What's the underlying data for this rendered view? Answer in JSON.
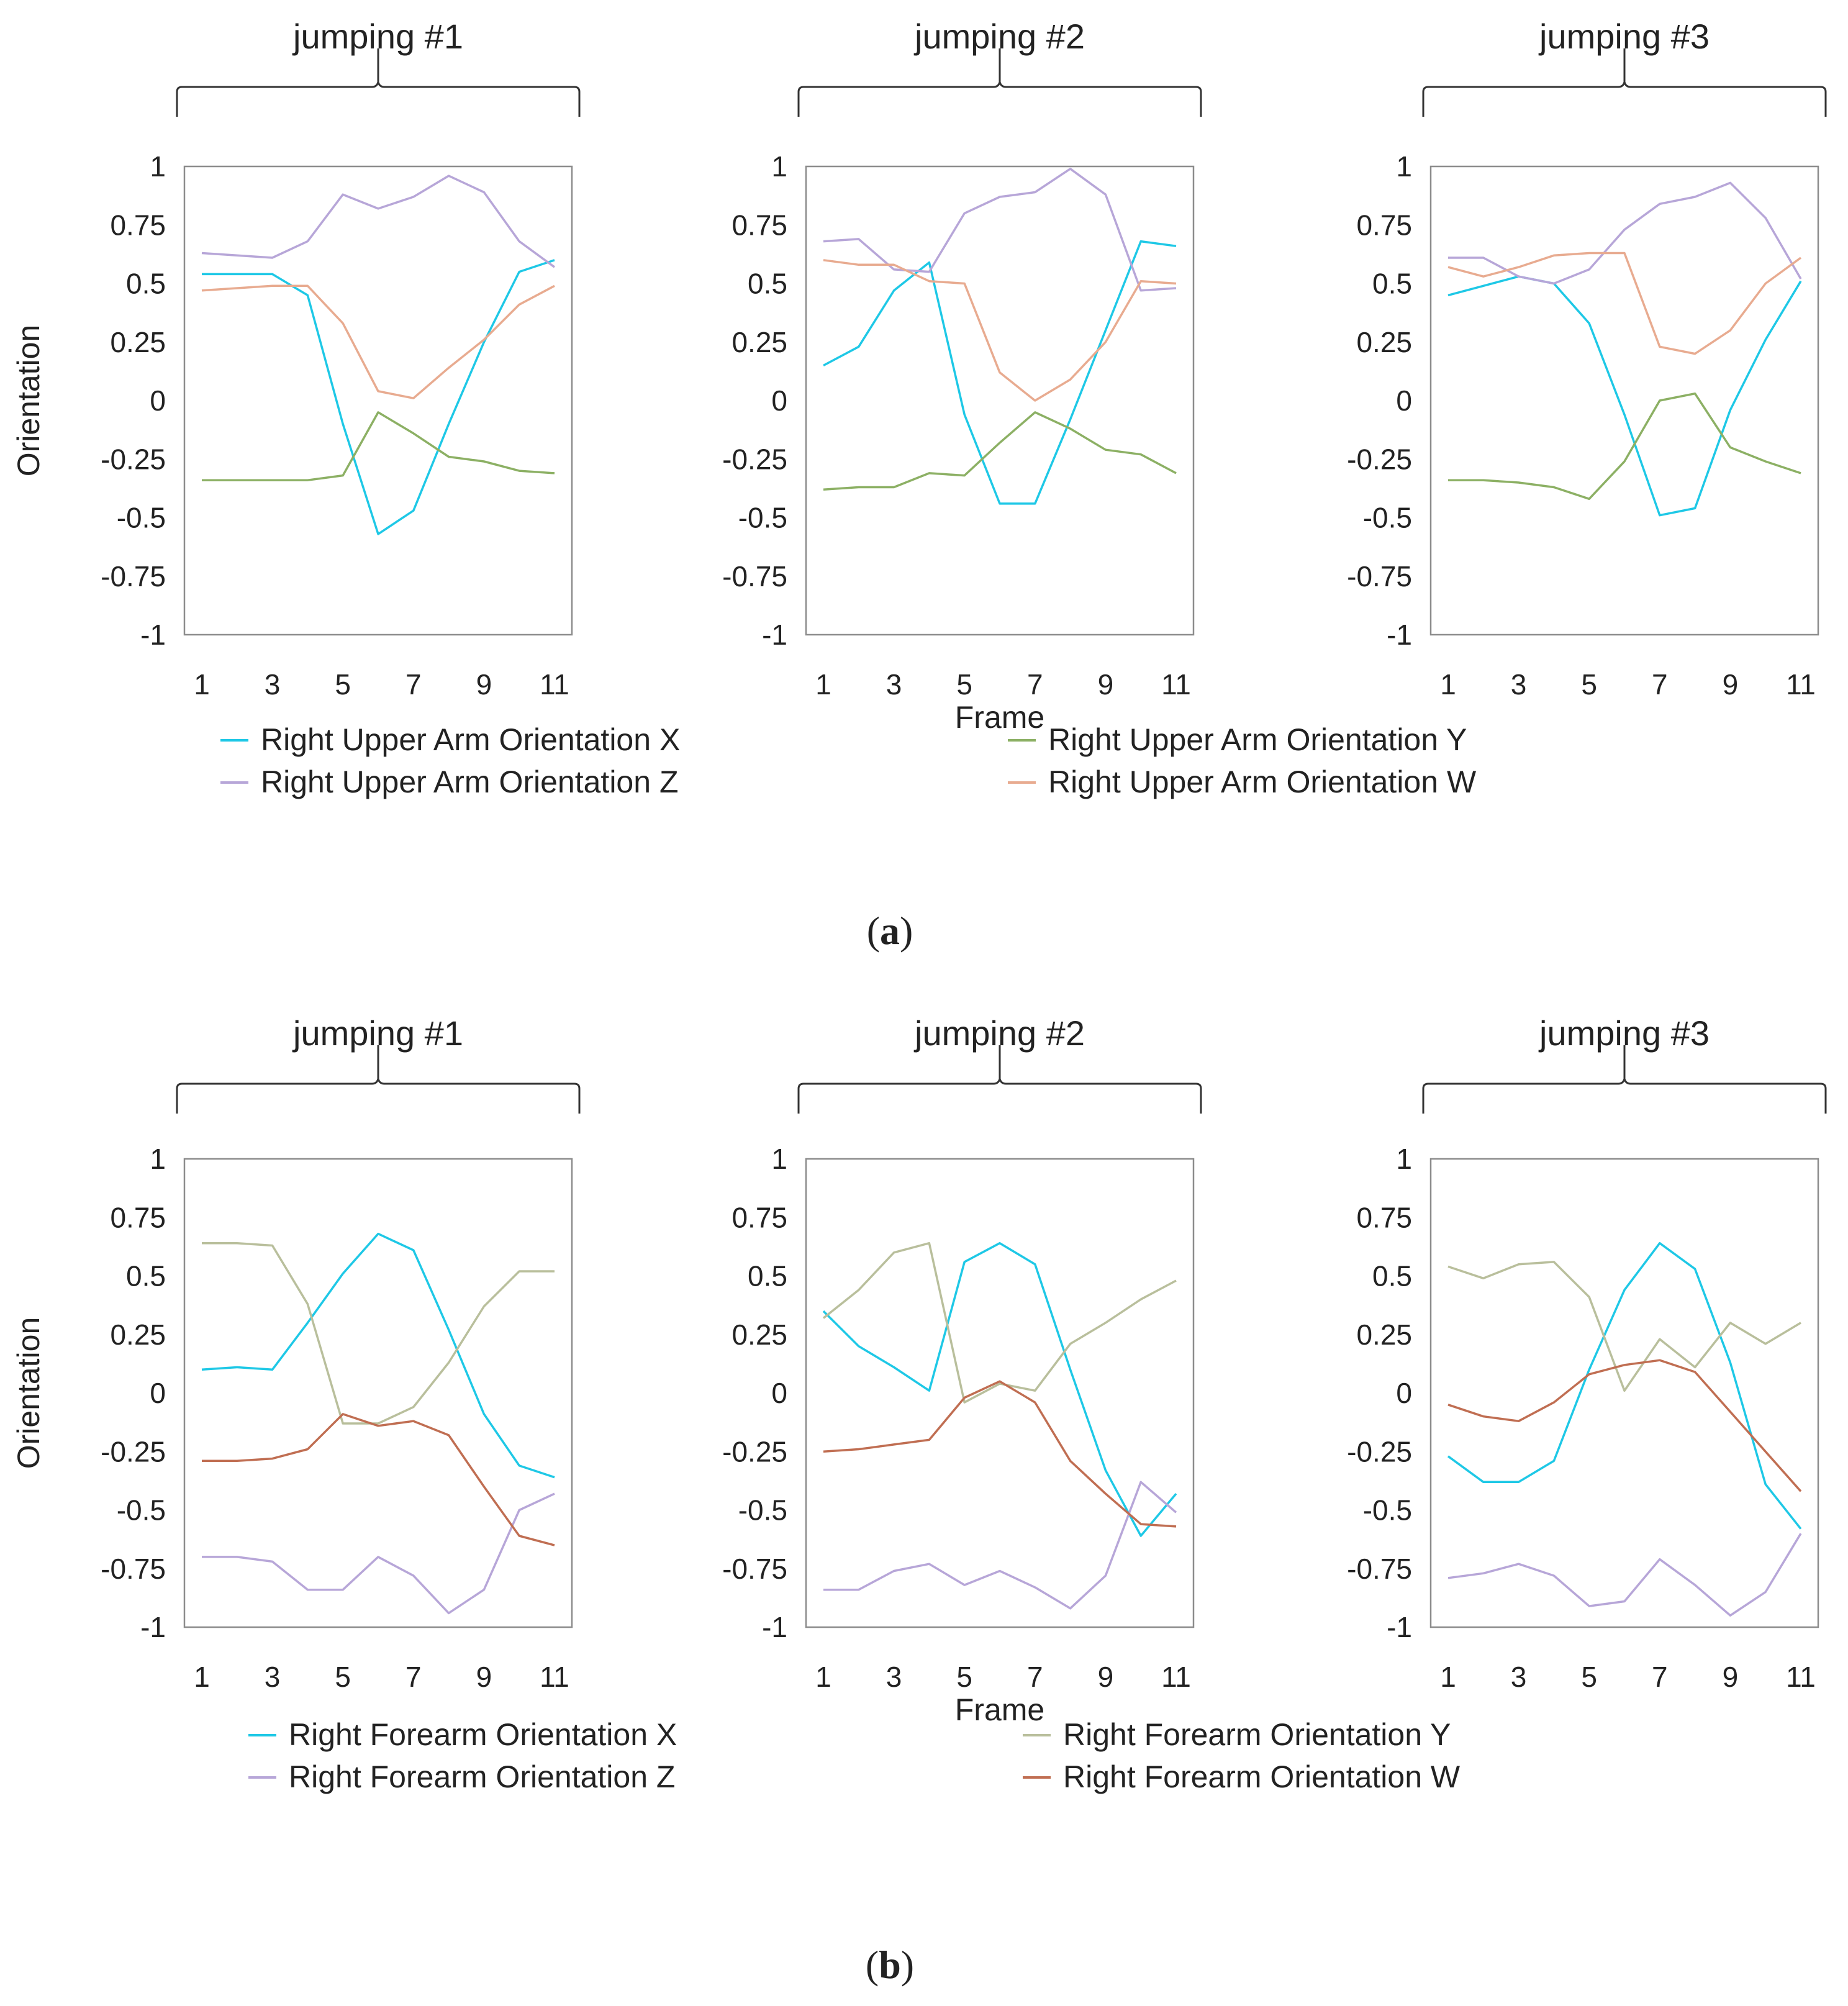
{
  "chart_data": [
    {
      "type": "line",
      "group": "a",
      "title": "jumping #1",
      "ylabel": "Orientation",
      "xlabel": "",
      "xlim": [
        1,
        11
      ],
      "ylim": [
        -1,
        1
      ],
      "x_ticks": [
        "1",
        "3",
        "5",
        "7",
        "9",
        "11"
      ],
      "y_ticks": [
        "1",
        "0.75",
        "0.5",
        "0.25",
        "0",
        "-0.25",
        "-0.5",
        "-0.75",
        "-1"
      ],
      "x": [
        1,
        2,
        3,
        4,
        5,
        6,
        7,
        8,
        9,
        10,
        11
      ],
      "series": [
        {
          "name": "Right Upper Arm Orientation X",
          "color": "#1ec8e6",
          "values": [
            0.54,
            0.54,
            0.54,
            0.45,
            -0.1,
            -0.57,
            -0.47,
            -0.1,
            0.25,
            0.55,
            0.6
          ]
        },
        {
          "name": "Right Upper Arm Orientation Y",
          "color": "#8cb064",
          "values": [
            -0.34,
            -0.34,
            -0.34,
            -0.34,
            -0.32,
            -0.05,
            -0.14,
            -0.24,
            -0.26,
            -0.3,
            -0.31
          ]
        },
        {
          "name": "Right Upper Arm Orientation Z",
          "color": "#b7a6d8",
          "values": [
            0.63,
            0.62,
            0.61,
            0.68,
            0.88,
            0.82,
            0.87,
            0.96,
            0.89,
            0.68,
            0.57
          ]
        },
        {
          "name": "Right Upper Arm Orientation W",
          "color": "#e8ab90",
          "values": [
            0.47,
            0.48,
            0.49,
            0.49,
            0.33,
            0.04,
            0.01,
            0.14,
            0.26,
            0.41,
            0.49
          ]
        }
      ]
    },
    {
      "type": "line",
      "group": "a",
      "title": "jumping #2",
      "ylabel": "",
      "xlabel": "Frame",
      "xlim": [
        1,
        11
      ],
      "ylim": [
        -1,
        1
      ],
      "x_ticks": [
        "1",
        "3",
        "5",
        "7",
        "9",
        "11"
      ],
      "y_ticks": [
        "1",
        "0.75",
        "0.5",
        "0.25",
        "0",
        "-0.25",
        "-0.5",
        "-0.75",
        "-1"
      ],
      "x": [
        1,
        2,
        3,
        4,
        5,
        6,
        7,
        8,
        9,
        10,
        11
      ],
      "series": [
        {
          "name": "Right Upper Arm Orientation X",
          "color": "#1ec8e6",
          "values": [
            0.15,
            0.23,
            0.47,
            0.59,
            -0.06,
            -0.44,
            -0.44,
            -0.08,
            0.3,
            0.68,
            0.66
          ]
        },
        {
          "name": "Right Upper Arm Orientation Y",
          "color": "#8cb064",
          "values": [
            -0.38,
            -0.37,
            -0.37,
            -0.31,
            -0.32,
            -0.18,
            -0.05,
            -0.12,
            -0.21,
            -0.23,
            -0.31
          ]
        },
        {
          "name": "Right Upper Arm Orientation Z",
          "color": "#b7a6d8",
          "values": [
            0.68,
            0.69,
            0.56,
            0.55,
            0.8,
            0.87,
            0.89,
            0.99,
            0.88,
            0.47,
            0.48
          ]
        },
        {
          "name": "Right Upper Arm Orientation W",
          "color": "#e8ab90",
          "values": [
            0.6,
            0.58,
            0.58,
            0.51,
            0.5,
            0.12,
            0.0,
            0.09,
            0.25,
            0.51,
            0.5
          ]
        }
      ]
    },
    {
      "type": "line",
      "group": "a",
      "title": "jumping #3",
      "ylabel": "",
      "xlabel": "",
      "xlim": [
        1,
        11
      ],
      "ylim": [
        -1,
        1
      ],
      "x_ticks": [
        "1",
        "3",
        "5",
        "7",
        "9",
        "11"
      ],
      "y_ticks": [
        "1",
        "0.75",
        "0.5",
        "0.25",
        "0",
        "-0.25",
        "-0.5",
        "-0.75",
        "-1"
      ],
      "x": [
        1,
        2,
        3,
        4,
        5,
        6,
        7,
        8,
        9,
        10,
        11
      ],
      "series": [
        {
          "name": "Right Upper Arm Orientation X",
          "color": "#1ec8e6",
          "values": [
            0.45,
            0.49,
            0.53,
            0.5,
            0.33,
            -0.06,
            -0.49,
            -0.46,
            -0.04,
            0.26,
            0.51
          ]
        },
        {
          "name": "Right Upper Arm Orientation Y",
          "color": "#8cb064",
          "values": [
            -0.34,
            -0.34,
            -0.35,
            -0.37,
            -0.42,
            -0.26,
            0.0,
            0.03,
            -0.2,
            -0.26,
            -0.31
          ]
        },
        {
          "name": "Right Upper Arm Orientation Z",
          "color": "#b7a6d8",
          "values": [
            0.61,
            0.61,
            0.53,
            0.5,
            0.56,
            0.73,
            0.84,
            0.87,
            0.93,
            0.78,
            0.52
          ]
        },
        {
          "name": "Right Upper Arm Orientation W",
          "color": "#e8ab90",
          "values": [
            0.57,
            0.53,
            0.57,
            0.62,
            0.63,
            0.63,
            0.23,
            0.2,
            0.3,
            0.5,
            0.61
          ]
        }
      ]
    },
    {
      "type": "line",
      "group": "b",
      "title": "jumping #1",
      "ylabel": "Orientation",
      "xlabel": "",
      "xlim": [
        1,
        11
      ],
      "ylim": [
        -1,
        1
      ],
      "x_ticks": [
        "1",
        "3",
        "5",
        "7",
        "9",
        "11"
      ],
      "y_ticks": [
        "1",
        "0.75",
        "0.5",
        "0.25",
        "0",
        "-0.25",
        "-0.5",
        "-0.75",
        "-1"
      ],
      "x": [
        1,
        2,
        3,
        4,
        5,
        6,
        7,
        8,
        9,
        10,
        11
      ],
      "series": [
        {
          "name": "Right Forearm Orientation X",
          "color": "#1ec8e6",
          "values": [
            0.1,
            0.11,
            0.1,
            0.3,
            0.51,
            0.68,
            0.61,
            0.27,
            -0.09,
            -0.31,
            -0.36
          ]
        },
        {
          "name": "Right Forearm Orientation Y",
          "color": "#b9bf9c",
          "values": [
            0.64,
            0.64,
            0.63,
            0.38,
            -0.13,
            -0.13,
            -0.06,
            0.13,
            0.37,
            0.52,
            0.52
          ]
        },
        {
          "name": "Right Forearm Orientation Z",
          "color": "#b7a6d8",
          "values": [
            -0.7,
            -0.7,
            -0.72,
            -0.84,
            -0.84,
            -0.7,
            -0.78,
            -0.94,
            -0.84,
            -0.5,
            -0.43
          ]
        },
        {
          "name": "Right Forearm Orientation W",
          "color": "#c06e52",
          "values": [
            -0.29,
            -0.29,
            -0.28,
            -0.24,
            -0.09,
            -0.14,
            -0.12,
            -0.18,
            -0.4,
            -0.61,
            -0.65
          ]
        }
      ]
    },
    {
      "type": "line",
      "group": "b",
      "title": "jumping #2",
      "ylabel": "",
      "xlabel": "Frame",
      "xlim": [
        1,
        11
      ],
      "ylim": [
        -1,
        1
      ],
      "x_ticks": [
        "1",
        "3",
        "5",
        "7",
        "9",
        "11"
      ],
      "y_ticks": [
        "1",
        "0.75",
        "0.5",
        "0.25",
        "0",
        "-0.25",
        "-0.5",
        "-0.75",
        "-1"
      ],
      "x": [
        1,
        2,
        3,
        4,
        5,
        6,
        7,
        8,
        9,
        10,
        11
      ],
      "series": [
        {
          "name": "Right Forearm Orientation X",
          "color": "#1ec8e6",
          "values": [
            0.35,
            0.2,
            0.11,
            0.01,
            0.56,
            0.64,
            0.55,
            0.1,
            -0.33,
            -0.61,
            -0.43
          ]
        },
        {
          "name": "Right Forearm Orientation Y",
          "color": "#b9bf9c",
          "values": [
            0.32,
            0.44,
            0.6,
            0.64,
            -0.04,
            0.04,
            0.01,
            0.21,
            0.3,
            0.4,
            0.48
          ]
        },
        {
          "name": "Right Forearm Orientation Z",
          "color": "#b7a6d8",
          "values": [
            -0.84,
            -0.84,
            -0.76,
            -0.73,
            -0.82,
            -0.76,
            -0.83,
            -0.92,
            -0.78,
            -0.38,
            -0.51
          ]
        },
        {
          "name": "Right Forearm Orientation W",
          "color": "#c06e52",
          "values": [
            -0.25,
            -0.24,
            -0.22,
            -0.2,
            -0.02,
            0.05,
            -0.04,
            -0.29,
            -0.43,
            -0.56,
            -0.57
          ]
        }
      ]
    },
    {
      "type": "line",
      "group": "b",
      "title": "jumping #3",
      "ylabel": "",
      "xlabel": "",
      "xlim": [
        1,
        11
      ],
      "ylim": [
        -1,
        1
      ],
      "x_ticks": [
        "1",
        "3",
        "5",
        "7",
        "9",
        "11"
      ],
      "y_ticks": [
        "1",
        "0.75",
        "0.5",
        "0.25",
        "0",
        "-0.25",
        "-0.5",
        "-0.75",
        "-1"
      ],
      "x": [
        1,
        2,
        3,
        4,
        5,
        6,
        7,
        8,
        9,
        10,
        11
      ],
      "series": [
        {
          "name": "Right Forearm Orientation X",
          "color": "#1ec8e6",
          "values": [
            -0.27,
            -0.38,
            -0.38,
            -0.29,
            0.1,
            0.44,
            0.64,
            0.53,
            0.13,
            -0.39,
            -0.58
          ]
        },
        {
          "name": "Right Forearm Orientation Y",
          "color": "#b9bf9c",
          "values": [
            0.54,
            0.49,
            0.55,
            0.56,
            0.41,
            0.01,
            0.23,
            0.11,
            0.3,
            0.21,
            0.3
          ]
        },
        {
          "name": "Right Forearm Orientation Z",
          "color": "#b7a6d8",
          "values": [
            -0.79,
            -0.77,
            -0.73,
            -0.78,
            -0.91,
            -0.89,
            -0.71,
            -0.82,
            -0.95,
            -0.85,
            -0.6
          ]
        },
        {
          "name": "Right Forearm Orientation W",
          "color": "#c06e52",
          "values": [
            -0.05,
            -0.1,
            -0.12,
            -0.04,
            0.08,
            0.12,
            0.14,
            0.09,
            -0.08,
            -0.25,
            -0.42
          ]
        }
      ]
    }
  ],
  "legends": {
    "a": [
      "Right Upper Arm Orientation X",
      "Right Upper Arm Orientation Y",
      "Right Upper Arm Orientation Z",
      "Right Upper Arm Orientation W"
    ],
    "b": [
      "Right Forearm Orientation X",
      "Right Forearm Orientation Y",
      "Right Forearm Orientation Z",
      "Right Forearm Orientation W"
    ]
  },
  "legend_colors": {
    "a": [
      "#1ec8e6",
      "#8cb064",
      "#b7a6d8",
      "#e8ab90"
    ],
    "b": [
      "#1ec8e6",
      "#b9bf9c",
      "#b7a6d8",
      "#c06e52"
    ]
  },
  "captions": {
    "a": {
      "open": "(",
      "letter": "a",
      "close": ")"
    },
    "b": {
      "open": "(",
      "letter": "b",
      "close": ")"
    }
  }
}
